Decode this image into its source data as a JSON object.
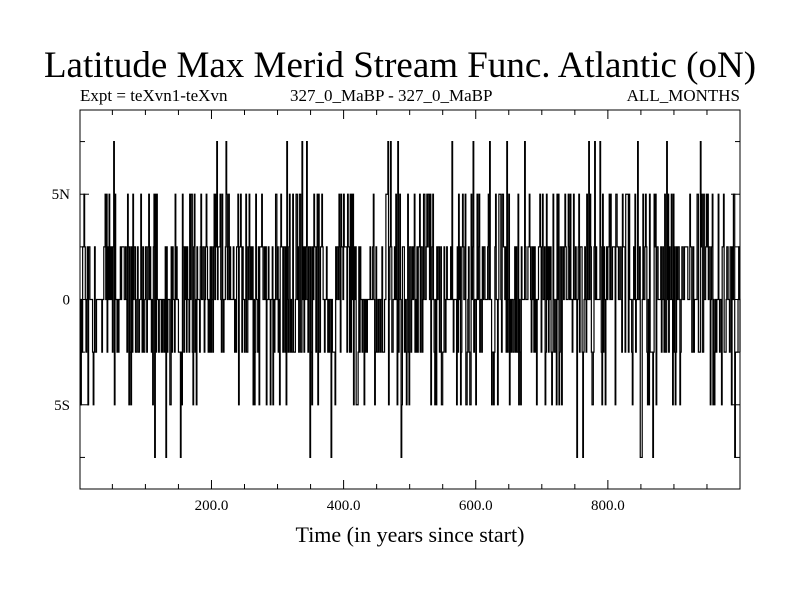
{
  "header": {
    "title": "Latitude Max Merid Stream Func. Atlantic (oN)",
    "expt": "Expt = teXvn1-teXvn",
    "period": "327_0_MaBP - 327_0_MaBP",
    "months": "ALL_MONTHS"
  },
  "chart_data": {
    "type": "line",
    "title": "Latitude Max Merid Stream Func. Atlantic (oN)",
    "xlabel": "Time (in years since start)",
    "ylabel": "",
    "xlim": [
      1,
      1000
    ],
    "ylim": [
      -9,
      9
    ],
    "x_ticks": [
      {
        "value": 200,
        "label": "200.0"
      },
      {
        "value": 400,
        "label": "400.0"
      },
      {
        "value": 600,
        "label": "600.0"
      },
      {
        "value": 800,
        "label": "800.0"
      }
    ],
    "y_ticks": [
      {
        "value": 5,
        "label": "5N"
      },
      {
        "value": 0,
        "label": "0"
      },
      {
        "value": -5,
        "label": "5S"
      }
    ],
    "grid": false,
    "series": [
      {
        "style": "step",
        "x_start": 1,
        "x_step": 1,
        "levels": [
          -7.5,
          -5,
          -2.5,
          0,
          2.5,
          5,
          7.5
        ],
        "values_note_omitted": true,
        "seed": 327
      }
    ]
  }
}
